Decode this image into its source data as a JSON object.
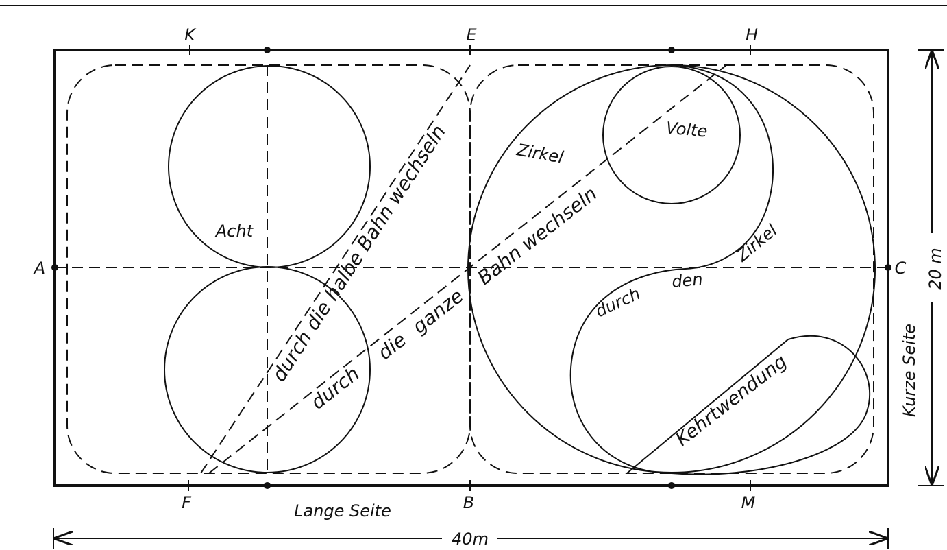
{
  "markers": {
    "top": [
      "K",
      "E",
      "H"
    ],
    "left": "A",
    "right": "C",
    "bottom": [
      "F",
      "B",
      "M"
    ]
  },
  "figures": {
    "acht": "Acht",
    "halbe_bahn": "durch die halbe Bahn wechseln",
    "ganze_bahn": [
      "durch",
      "die",
      "ganze",
      "Bahn wechseln"
    ],
    "zirkel": "Zirkel",
    "volte": "Volte",
    "durch_den_zirkel": [
      "durch",
      "den",
      "Zirkel"
    ],
    "kehrtwendung": "Kehrtwendung"
  },
  "dimensions": {
    "short_side": "Kurze Seite",
    "long_side": "Lange Seite",
    "width": "20 m",
    "length": "40m"
  }
}
